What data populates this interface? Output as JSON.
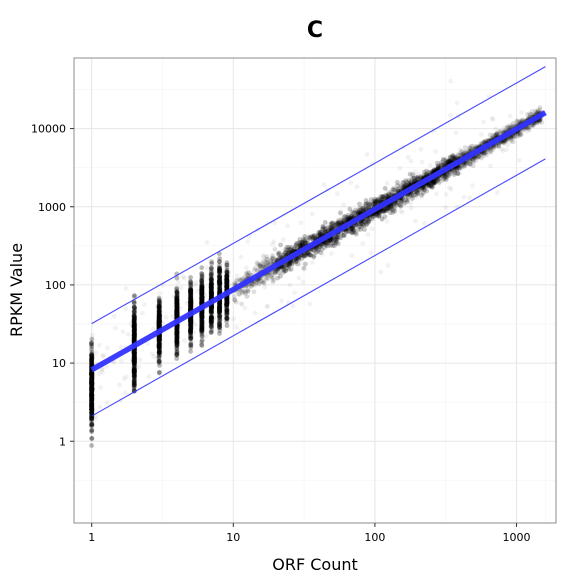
{
  "chart_data": {
    "type": "scatter",
    "title": "C",
    "xlabel": "ORF Count",
    "ylabel": "RPKM Value",
    "x_scale": "log10",
    "y_scale": "log10",
    "xlim": [
      0.75,
      1900
    ],
    "ylim": [
      0.09,
      80000
    ],
    "grid": true,
    "x_ticks": [
      {
        "value": 1,
        "label": "1"
      },
      {
        "value": 10,
        "label": "10"
      },
      {
        "value": 100,
        "label": "100"
      },
      {
        "value": 1000,
        "label": "1000"
      }
    ],
    "y_ticks": [
      {
        "value": 1,
        "label": "1"
      },
      {
        "value": 10,
        "label": "10"
      },
      {
        "value": 100,
        "label": "100"
      },
      {
        "value": 1000,
        "label": "1000"
      },
      {
        "value": 10000,
        "label": "10000"
      }
    ],
    "series": [
      {
        "role": "points",
        "color": "#000000",
        "description_range_x": [
          1,
          1500
        ],
        "density_columns": [
          {
            "x": 1,
            "y_min": 0.5,
            "y_max": 80,
            "y_center": 5
          },
          {
            "x": 2,
            "y_min": 1.2,
            "y_max": 150,
            "y_center": 15
          },
          {
            "x": 3,
            "y_min": 5,
            "y_max": 200,
            "y_center": 27
          },
          {
            "x": 4,
            "y_min": 8,
            "y_max": 300,
            "y_center": 36
          },
          {
            "x": 5,
            "y_min": 10,
            "y_max": 400,
            "y_center": 45
          },
          {
            "x": 6,
            "y_min": 12,
            "y_max": 500,
            "y_center": 55
          },
          {
            "x": 7,
            "y_min": 14,
            "y_max": 500,
            "y_center": 64
          },
          {
            "x": 8,
            "y_min": 16,
            "y_max": 600,
            "y_center": 73
          },
          {
            "x": 9,
            "y_min": 18,
            "y_max": 600,
            "y_center": 82
          }
        ]
      },
      {
        "role": "fit",
        "color": "#3333ff",
        "x": [
          1,
          1600
        ],
        "y": [
          8.2,
          16000
        ]
      },
      {
        "role": "upper_band",
        "color": "#3333ff",
        "x": [
          1,
          1600
        ],
        "y": [
          32,
          62000
        ]
      },
      {
        "role": "lower_band",
        "color": "#3333ff",
        "x": [
          1,
          1600
        ],
        "y": [
          2.1,
          4100
        ]
      }
    ]
  }
}
